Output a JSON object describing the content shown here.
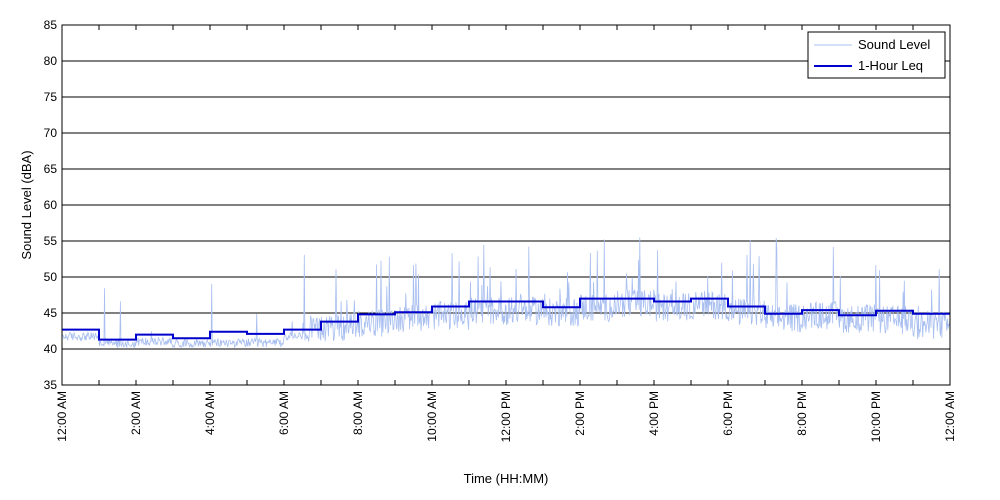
{
  "chart_data": {
    "type": "line",
    "title": "",
    "xlabel": "Time (HH:MM)",
    "ylabel": "Sound Level (dBA)",
    "x_unit": "hours since 12:00 AM",
    "xlim": [
      0,
      24
    ],
    "ylim": [
      35,
      85
    ],
    "yticks": [
      35,
      40,
      45,
      50,
      55,
      60,
      65,
      70,
      75,
      80,
      85
    ],
    "xticks": [
      {
        "value": 0,
        "label": "12:00 AM"
      },
      {
        "value": 2,
        "label": "2:00 AM"
      },
      {
        "value": 4,
        "label": "4:00 AM"
      },
      {
        "value": 6,
        "label": "6:00 AM"
      },
      {
        "value": 8,
        "label": "8:00 AM"
      },
      {
        "value": 10,
        "label": "10:00 AM"
      },
      {
        "value": 12,
        "label": "12:00 PM"
      },
      {
        "value": 14,
        "label": "2:00 PM"
      },
      {
        "value": 16,
        "label": "4:00 PM"
      },
      {
        "value": 18,
        "label": "6:00 PM"
      },
      {
        "value": 20,
        "label": "8:00 PM"
      },
      {
        "value": 22,
        "label": "10:00 PM"
      },
      {
        "value": 24,
        "label": "12:00 AM"
      }
    ],
    "grid": "horizontal",
    "legend_position": "top-right",
    "series": [
      {
        "name": "Sound Level",
        "style": "thin-noisy",
        "color": "#a9bff0",
        "hourly_baseline": [
          41.5,
          40.5,
          40.8,
          40.6,
          40.6,
          40.6,
          41.5,
          42.2,
          42.8,
          43.5,
          43.8,
          44.5,
          44.5,
          44.3,
          45.0,
          45.5,
          45.0,
          45.3,
          44.3,
          43.5,
          43.8,
          43.4,
          43.2,
          42.5
        ],
        "peak_max": 55.5
      },
      {
        "name": "1-Hour Leq",
        "style": "step",
        "color": "#0000cc",
        "x": [
          0,
          1,
          2,
          3,
          4,
          5,
          6,
          7,
          8,
          9,
          10,
          11,
          12,
          13,
          14,
          15,
          16,
          17,
          18,
          19,
          20,
          21,
          22,
          23
        ],
        "values": [
          42.7,
          41.3,
          42.0,
          41.5,
          42.4,
          42.1,
          42.7,
          43.8,
          44.8,
          45.1,
          45.9,
          46.6,
          46.6,
          45.8,
          47.0,
          47.0,
          46.6,
          47.0,
          45.9,
          44.9,
          45.4,
          44.7,
          45.3,
          44.9
        ]
      }
    ]
  }
}
